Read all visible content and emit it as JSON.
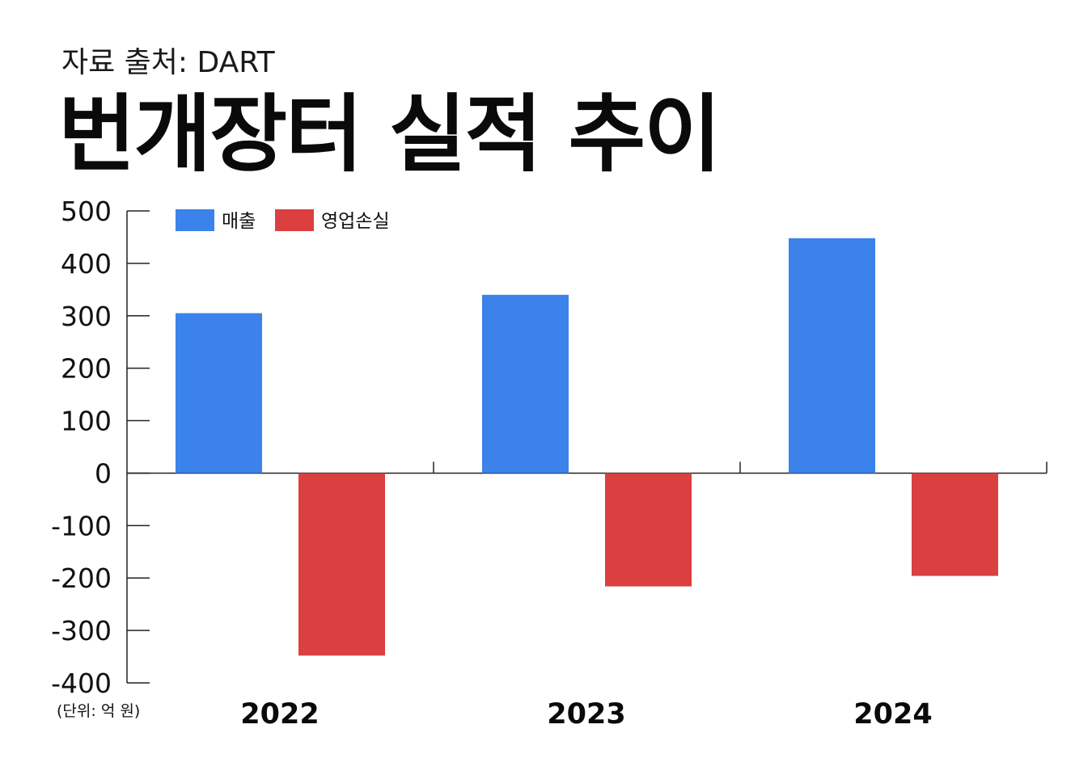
{
  "header": {
    "source": "자료 출처: DART",
    "title": "번개장터 실적 추이"
  },
  "unit_note": "(단위: 억 원)",
  "colors": {
    "revenue": "#3b82ea",
    "operating_loss": "#db3f40",
    "axis": "#222222",
    "text": "#111111"
  },
  "chart_data": {
    "type": "bar",
    "title": "번개장터 실적 추이",
    "categories": [
      "2022",
      "2023",
      "2024"
    ],
    "series": [
      {
        "name": "매출",
        "values": [
          305,
          340,
          448
        ],
        "color": "#3b82ea"
      },
      {
        "name": "영업손실",
        "values": [
          -348,
          -216,
          -196
        ],
        "color": "#db3f40"
      }
    ],
    "ylim": [
      -400,
      500
    ],
    "yticks": [
      "500",
      "400",
      "300",
      "200",
      "100",
      "0",
      "-100",
      "-200",
      "-300",
      "-400"
    ],
    "ytick_values": [
      500,
      400,
      300,
      200,
      100,
      0,
      -100,
      -200,
      -300,
      -400
    ],
    "xlabel": "",
    "ylabel": "",
    "grid": false,
    "legend": "top-left"
  }
}
